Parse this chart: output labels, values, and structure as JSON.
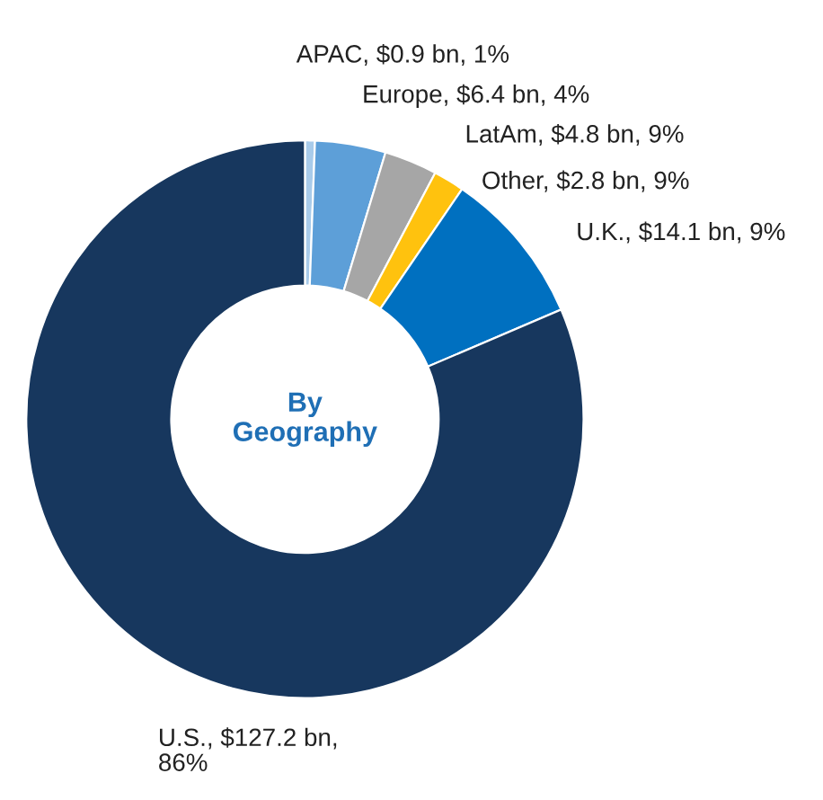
{
  "chart_data": {
    "type": "donut",
    "categories": [
      "APAC, $0.9 bn, 1%",
      "Europe, $6.4 bn, 4%",
      "LatAm, $4.8 bn, 9%",
      "Other, $2.8 bn, 9%",
      "U.K., $14.1 bn, 9%",
      "U.S., $127.2 bn,\n86%"
    ],
    "values": [
      0.9,
      6.4,
      4.8,
      2.8,
      14.1,
      127.2
    ],
    "colors": [
      "#a8cbea",
      "#5d9fd8",
      "#a6a6a6",
      "#ffc20e",
      "#0070c0",
      "#17375e"
    ],
    "annotations": [
      "By\nGeography"
    ],
    "legend": false
  }
}
